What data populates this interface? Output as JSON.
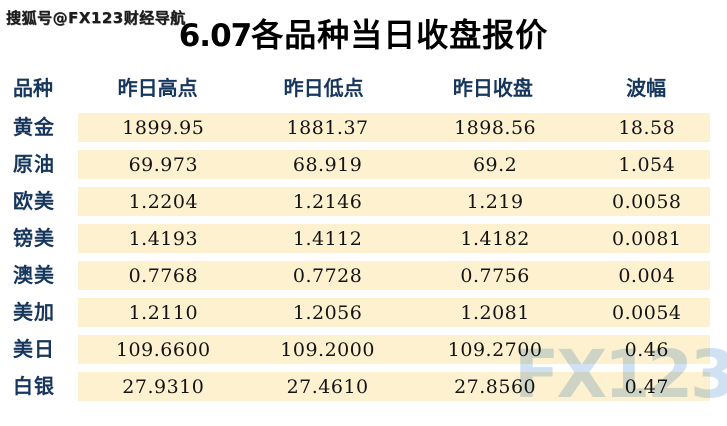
{
  "watermark_top": "搜狐号@FX123财经导航",
  "watermark_bottom": "FX123",
  "title": {
    "prefix": "6.07",
    "main": "各品种当日收盘报价"
  },
  "table": {
    "headers": {
      "variety": "品种",
      "high": "昨日高点",
      "low": "昨日低点",
      "close": "昨日收盘",
      "range": "波幅"
    },
    "rows": [
      {
        "label": "黄金",
        "high": "1899.95",
        "low": "1881.37",
        "close": "1898.56",
        "range": "18.58"
      },
      {
        "label": "原油",
        "high": "69.973",
        "low": "68.919",
        "close": "69.2",
        "range": "1.054"
      },
      {
        "label": "欧美",
        "high": "1.2204",
        "low": "1.2146",
        "close": "1.219",
        "range": "0.0058"
      },
      {
        "label": "镑美",
        "high": "1.4193",
        "low": "1.4112",
        "close": "1.4182",
        "range": "0.0081"
      },
      {
        "label": "澳美",
        "high": "0.7768",
        "low": "0.7728",
        "close": "0.7756",
        "range": "0.004"
      },
      {
        "label": "美加",
        "high": "1.2110",
        "low": "1.2056",
        "close": "1.2081",
        "range": "0.0054"
      },
      {
        "label": "美日",
        "high": "109.6600",
        "low": "109.2000",
        "close": "109.2700",
        "range": "0.46"
      },
      {
        "label": "白银",
        "high": "27.9310",
        "low": "27.4610",
        "close": "27.8560",
        "range": "0.47"
      }
    ]
  },
  "colors": {
    "header_text": "#17365d",
    "row_stripe": "#fdf1d0",
    "number_text": "#141414",
    "bottom_watermark": "#cfe1f3"
  }
}
